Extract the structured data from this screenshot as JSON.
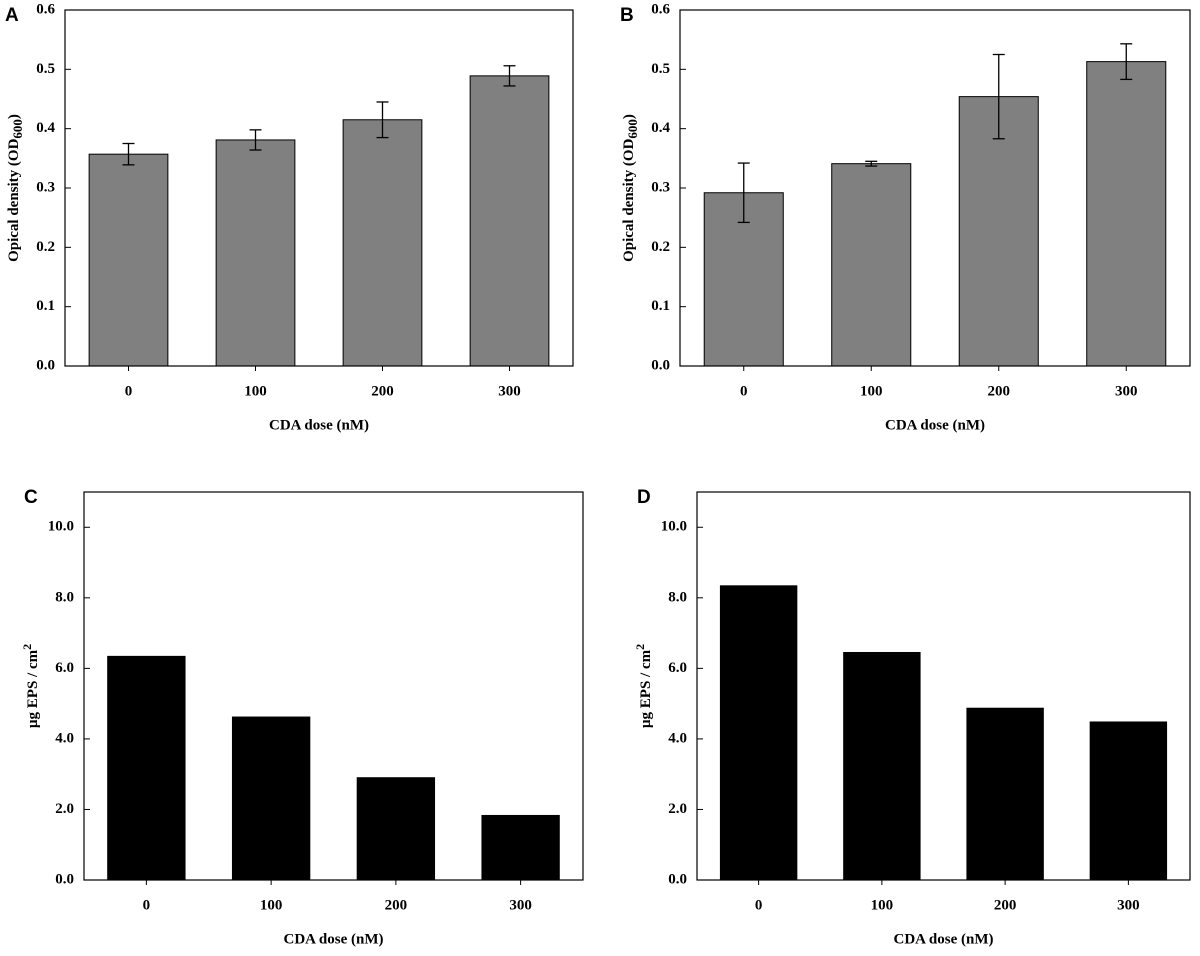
{
  "chart_data": [
    {
      "type": "bar",
      "panel_label": "A",
      "x_label": "CDA dose (nM)",
      "y_label": {
        "text": "Opical density (OD",
        "sub": "600",
        "tail": ")"
      },
      "categories": [
        "0",
        "100",
        "200",
        "300"
      ],
      "values": [
        0.357,
        0.381,
        0.415,
        0.489
      ],
      "errors": [
        0.018,
        0.017,
        0.03,
        0.017
      ],
      "color": "#808080",
      "ylim": [
        0,
        0.6
      ],
      "yticks": [
        {
          "value": 0,
          "label": "0.0"
        },
        0.1,
        0.2,
        0.3,
        0.4,
        0.5,
        0.6
      ]
    },
    {
      "type": "bar",
      "panel_label": "B",
      "x_label": "CDA dose (nM)",
      "y_label": {
        "text": "Opical density (OD",
        "sub": "600",
        "tail": ")"
      },
      "categories": [
        "0",
        "100",
        "200",
        "300"
      ],
      "values": [
        0.292,
        0.341,
        0.454,
        0.513
      ],
      "errors": [
        0.05,
        0.004,
        0.071,
        0.03
      ],
      "color": "#808080",
      "ylim": [
        0,
        0.6
      ],
      "yticks": [
        {
          "value": 0,
          "label": "0.0"
        },
        0.1,
        0.2,
        0.3,
        0.4,
        0.5,
        0.6
      ]
    },
    {
      "type": "bar",
      "panel_label": "C",
      "x_label": "CDA dose (nM)",
      "y_label": {
        "text": "µg EPS / cm",
        "sup": "2"
      },
      "categories": [
        "0",
        "100",
        "200",
        "300"
      ],
      "values": [
        6.34,
        4.62,
        2.9,
        1.83
      ],
      "color": "#000000",
      "ylim": [
        0,
        11
      ],
      "yticks": [
        {
          "value": 0,
          "label": "0.0"
        },
        {
          "value": 2,
          "label": "2.0"
        },
        {
          "value": 4,
          "label": "4.0"
        },
        {
          "value": 6,
          "label": "6.0"
        },
        {
          "value": 8,
          "label": "8.0"
        },
        {
          "value": 10,
          "label": "10.0"
        }
      ]
    },
    {
      "type": "bar",
      "panel_label": "D",
      "x_label": "CDA dose (nM)",
      "y_label": {
        "text": "µg EPS / cm",
        "sup": "2"
      },
      "categories": [
        "0",
        "100",
        "200",
        "300"
      ],
      "values": [
        8.34,
        6.45,
        4.87,
        4.48
      ],
      "color": "#000000",
      "ylim": [
        0,
        11
      ],
      "yticks": [
        {
          "value": 0,
          "label": "0.0"
        },
        {
          "value": 2,
          "label": "2.0"
        },
        {
          "value": 4,
          "label": "4.0"
        },
        {
          "value": 6,
          "label": "6.0"
        },
        {
          "value": 8,
          "label": "8.0"
        },
        {
          "value": 10,
          "label": "10.0"
        }
      ]
    }
  ]
}
